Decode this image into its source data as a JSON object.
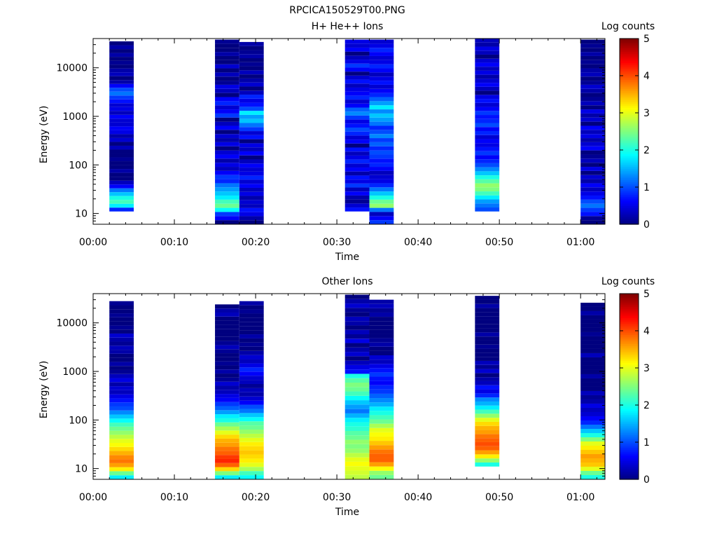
{
  "page_title": "RPCICA150529T00.PNG",
  "colors": {
    "colormap": [
      "#00007f",
      "#0000ff",
      "#007fff",
      "#00ffff",
      "#7fff7f",
      "#ffff00",
      "#ff7f00",
      "#ff0000",
      "#7f0000"
    ],
    "frame": "#000000",
    "background": "#ffffff"
  },
  "chart_data": [
    {
      "type": "heatmap",
      "title": "H+ He++ Ions",
      "xlabel": "Time",
      "ylabel": "Energy (eV)",
      "xscale": "time",
      "yscale": "log",
      "xlim": [
        "00:00",
        "01:03"
      ],
      "ylim": [
        6,
        40000
      ],
      "xticks": [
        "00:00",
        "00:10",
        "00:20",
        "00:30",
        "00:40",
        "00:50",
        "01:00"
      ],
      "yticks": [
        "10",
        "100",
        "1000",
        "10000"
      ],
      "colorbar": {
        "label": "Log counts",
        "min": 0,
        "max": 5,
        "ticks": [
          "0",
          "1",
          "2",
          "3",
          "4",
          "5"
        ]
      },
      "columns": [
        {
          "t_start": "00:02",
          "t_end": "00:05",
          "e_min": 11,
          "e_max": 35000,
          "values": [
            0.8,
            1.8,
            2.2,
            2.0,
            1.6,
            1.2,
            0.6,
            0.3,
            0,
            0,
            0.2,
            0,
            0,
            0.1,
            0,
            0,
            0.3,
            0,
            0.4,
            0.2,
            0.5,
            0.6,
            0.4,
            0.4,
            0.6,
            0.3,
            0.5,
            0.4,
            0.7,
            0.9,
            1.2,
            1.0,
            0.6,
            0.2,
            0,
            0.3,
            0.2,
            0,
            0.1,
            0,
            0.2,
            0,
            0.2,
            0
          ]
        },
        {
          "t_start": "00:15",
          "t_end": "00:18",
          "e_min": 6,
          "e_max": 38000,
          "values": [
            0.0,
            0.6,
            0.9,
            1.9,
            2.4,
            2.2,
            1.8,
            1.6,
            1.4,
            1.2,
            0.8,
            0.9,
            0.6,
            0.3,
            0.5,
            0.2,
            0.6,
            0.4,
            0,
            0.5,
            0.2,
            0.4,
            0,
            0.6,
            0.3,
            0,
            0.9,
            0.6,
            0.4,
            0.8,
            0.6,
            0,
            0.3,
            0.5,
            0.1,
            0,
            0.3,
            0,
            0.4,
            0,
            0,
            0.2,
            0,
            0,
            0.1
          ]
        },
        {
          "t_start": "00:18",
          "t_end": "00:21",
          "e_min": 6,
          "e_max": 34000,
          "values": [
            0.0,
            0.2,
            0.5,
            0.7,
            0.3,
            0.4,
            0.2,
            0.5,
            0.3,
            0.6,
            0.4,
            0.8,
            0.5,
            0.4,
            0.6,
            0.3,
            0,
            0.6,
            0.3,
            0.5,
            0,
            0.7,
            0.4,
            0.9,
            1.2,
            1.6,
            1.4,
            1.8,
            1.0,
            0.7,
            0.5,
            0.8,
            0.3,
            0,
            0.4,
            0.2,
            0,
            0.3,
            0,
            0.1,
            0,
            0.2,
            0.1,
            0,
            0.2
          ]
        },
        {
          "t_start": "00:31",
          "t_end": "00:34",
          "e_min": 11,
          "e_max": 38000,
          "values": [
            0.7,
            0.4,
            0.1,
            0.2,
            0.6,
            0.3,
            0.9,
            0.5,
            0.7,
            0.2,
            0.6,
            0.4,
            0.8,
            0.5,
            0.3,
            0.7,
            0,
            0.6,
            0.4,
            0.8,
            1.0,
            0.7,
            0.5,
            0.9,
            1.3,
            1.1,
            0.6,
            0.4,
            0.8,
            0.6,
            0.5,
            0.3,
            0.7,
            0.4,
            0,
            0.6,
            0.9,
            0.5,
            0.3,
            0,
            0.6,
            0.4,
            0.5
          ]
        },
        {
          "t_start": "00:34",
          "t_end": "00:37",
          "e_min": 6,
          "e_max": 38000,
          "values": [
            0.9,
            0.6,
            0.3,
            1.2,
            2.6,
            2.4,
            2.0,
            1.6,
            1.2,
            0.8,
            0.5,
            0.4,
            0.3,
            0.6,
            0.8,
            0.7,
            0.9,
            1.0,
            0.8,
            1.1,
            0.9,
            1.3,
            1.0,
            0.8,
            1.2,
            1.4,
            1.6,
            1.3,
            1.8,
            1.4,
            1.1,
            0.8,
            0.6,
            0.4,
            0.7,
            0.5,
            0.3,
            0.6,
            0.8,
            0.5,
            0.4,
            0.6,
            0.8,
            0.5,
            0.4
          ]
        },
        {
          "t_start": "00:47",
          "t_end": "00:50",
          "e_min": 11,
          "e_max": 40000,
          "values": [
            1.0,
            1.2,
            1.4,
            1.8,
            2.2,
            2.5,
            2.6,
            2.3,
            2.0,
            1.6,
            1.3,
            1.0,
            0.8,
            0.6,
            0.9,
            0.7,
            0.5,
            0.6,
            0.4,
            0.8,
            0.6,
            1.0,
            0.8,
            0.7,
            0.9,
            0.6,
            0.4,
            0.7,
            0.5,
            0,
            0.3,
            0.6,
            0.4,
            0.2,
            0.5,
            0.3,
            0.6,
            0.4,
            0,
            0.3,
            0.5,
            0.2,
            0.3
          ]
        },
        {
          "t_start": "01:00",
          "t_end": "01:03",
          "e_min": 6,
          "e_max": 38000,
          "values": [
            0.0,
            0.1,
            0.7,
            0.9,
            1.2,
            1.0,
            0.7,
            0.5,
            0.3,
            0.6,
            0.2,
            0.4,
            0,
            0.5,
            0,
            0.3,
            0.1,
            0,
            0.6,
            0.4,
            0.2,
            0.5,
            0.3,
            0.6,
            0,
            0.4,
            0.2,
            0.5,
            0,
            0.3,
            0.1,
            0,
            0.2,
            0.4,
            0.1,
            0,
            0.3,
            0.2,
            0,
            0.1,
            0,
            0.2,
            0,
            0.1,
            0
          ]
        }
      ]
    },
    {
      "type": "heatmap",
      "title": "Other Ions",
      "xlabel": "Time",
      "ylabel": "Energy (eV)",
      "xscale": "time",
      "yscale": "log",
      "xlim": [
        "00:00",
        "01:03"
      ],
      "ylim": [
        6,
        40000
      ],
      "xticks": [
        "00:00",
        "00:10",
        "00:20",
        "00:30",
        "00:40",
        "00:50",
        "01:00"
      ],
      "yticks": [
        "10",
        "100",
        "1000",
        "10000"
      ],
      "colorbar": {
        "label": "Log counts",
        "min": 0,
        "max": 5,
        "ticks": [
          "0",
          "1",
          "2",
          "3",
          "4",
          "5"
        ]
      },
      "columns": [
        {
          "t_start": "00:02",
          "t_end": "00:05",
          "e_min": 6,
          "e_max": 28000,
          "values": [
            1.8,
            2.4,
            3.2,
            3.6,
            3.8,
            3.7,
            3.5,
            3.3,
            3.1,
            3.0,
            2.8,
            2.6,
            2.4,
            2.2,
            1.9,
            1.6,
            1.3,
            1.0,
            0.9,
            0.7,
            0.5,
            0.3,
            0.4,
            0.2,
            0.5,
            0.3,
            0.1,
            0,
            0.2,
            0,
            0,
            0.2,
            0.3,
            0.1,
            0.2,
            0.4,
            0,
            0.1,
            0,
            0,
            0.1,
            0,
            0,
            0.1
          ]
        },
        {
          "t_start": "00:15",
          "t_end": "00:18",
          "e_min": 6,
          "e_max": 24000,
          "values": [
            1.8,
            2.5,
            3.3,
            3.9,
            4.2,
            4.1,
            3.9,
            3.8,
            3.6,
            3.5,
            3.3,
            3.0,
            2.7,
            2.4,
            2.0,
            1.8,
            1.4,
            1.1,
            0.9,
            0.6,
            0.5,
            0.3,
            0.2,
            0.4,
            0.1,
            0,
            0.2,
            0,
            0.1,
            0,
            0,
            0.1,
            0.3,
            0.1,
            0,
            0,
            0,
            0,
            0,
            0,
            0.3,
            0.2,
            0
          ]
        },
        {
          "t_start": "00:18",
          "t_end": "00:21",
          "e_min": 6,
          "e_max": 28000,
          "values": [
            1.9,
            2.2,
            2.7,
            3.0,
            3.2,
            3.3,
            3.4,
            3.3,
            3.2,
            3.0,
            2.8,
            2.6,
            2.4,
            2.3,
            1.9,
            1.6,
            1.2,
            1.0,
            0.6,
            0.4,
            0.2,
            0.3,
            0.1,
            0.3,
            0.4,
            0.6,
            0.8,
            0.5,
            0.3,
            0.4,
            0.2,
            0,
            0.1,
            0,
            0.2,
            0,
            0,
            0,
            0,
            0,
            0.1,
            0,
            0.2
          ]
        },
        {
          "t_start": "00:31",
          "t_end": "00:34",
          "e_min": 6,
          "e_max": 38000,
          "values": [
            2.8,
            2.9,
            3.0,
            3.1,
            3.0,
            2.8,
            2.6,
            2.5,
            2.6,
            2.4,
            2.3,
            2.1,
            2.0,
            1.8,
            1.5,
            1.2,
            1.4,
            1.6,
            1.9,
            2.2,
            2.4,
            2.5,
            2.3,
            2.0,
            0.7,
            0.5,
            0.3,
            0,
            0.4,
            0.2,
            0,
            0.5,
            0.1,
            0.3,
            0,
            0.2,
            0.3,
            0,
            0.1,
            0.4,
            0.2,
            0
          ]
        },
        {
          "t_start": "00:34",
          "t_end": "00:37",
          "e_min": 6,
          "e_max": 30000,
          "values": [
            2.4,
            2.6,
            3.1,
            3.6,
            3.9,
            3.9,
            3.8,
            3.6,
            3.4,
            3.2,
            3.1,
            3.0,
            2.7,
            2.4,
            2.2,
            2.0,
            1.8,
            1.5,
            1.3,
            1.1,
            0.9,
            0.8,
            0.6,
            0.7,
            0.9,
            0.7,
            0.5,
            0.3,
            0.4,
            0,
            0,
            0.2,
            0.1,
            0,
            0,
            0,
            0,
            0,
            0.2,
            0.1,
            0.3,
            0.2
          ]
        },
        {
          "t_start": "00:47",
          "t_end": "00:50",
          "e_min": 11,
          "e_max": 36000,
          "values": [
            2.0,
            2.6,
            3.2,
            3.6,
            3.9,
            4.0,
            3.9,
            3.8,
            3.6,
            3.5,
            3.3,
            3.0,
            2.6,
            2.2,
            1.8,
            1.5,
            1.3,
            0.8,
            0.5,
            0.7,
            0.3,
            0.2,
            0,
            0.4,
            0.1,
            0.3,
            0,
            0,
            0,
            0.1,
            0,
            0,
            0.2,
            0,
            0,
            0,
            0,
            0,
            0,
            0.2,
            0,
            0
          ]
        },
        {
          "t_start": "01:00",
          "t_end": "01:03",
          "e_min": 6,
          "e_max": 26000,
          "values": [
            2.0,
            2.4,
            3.0,
            3.4,
            3.5,
            3.6,
            3.4,
            3.2,
            3.0,
            2.5,
            2.0,
            1.6,
            1.2,
            0.8,
            0.6,
            0.4,
            0.3,
            0.5,
            0.2,
            0.1,
            0.3,
            0,
            0,
            0,
            0.2,
            0,
            0,
            0,
            0,
            0.3,
            0,
            0,
            0,
            0,
            0.1,
            0,
            0,
            0,
            0,
            0.2,
            0,
            0
          ]
        }
      ]
    }
  ]
}
